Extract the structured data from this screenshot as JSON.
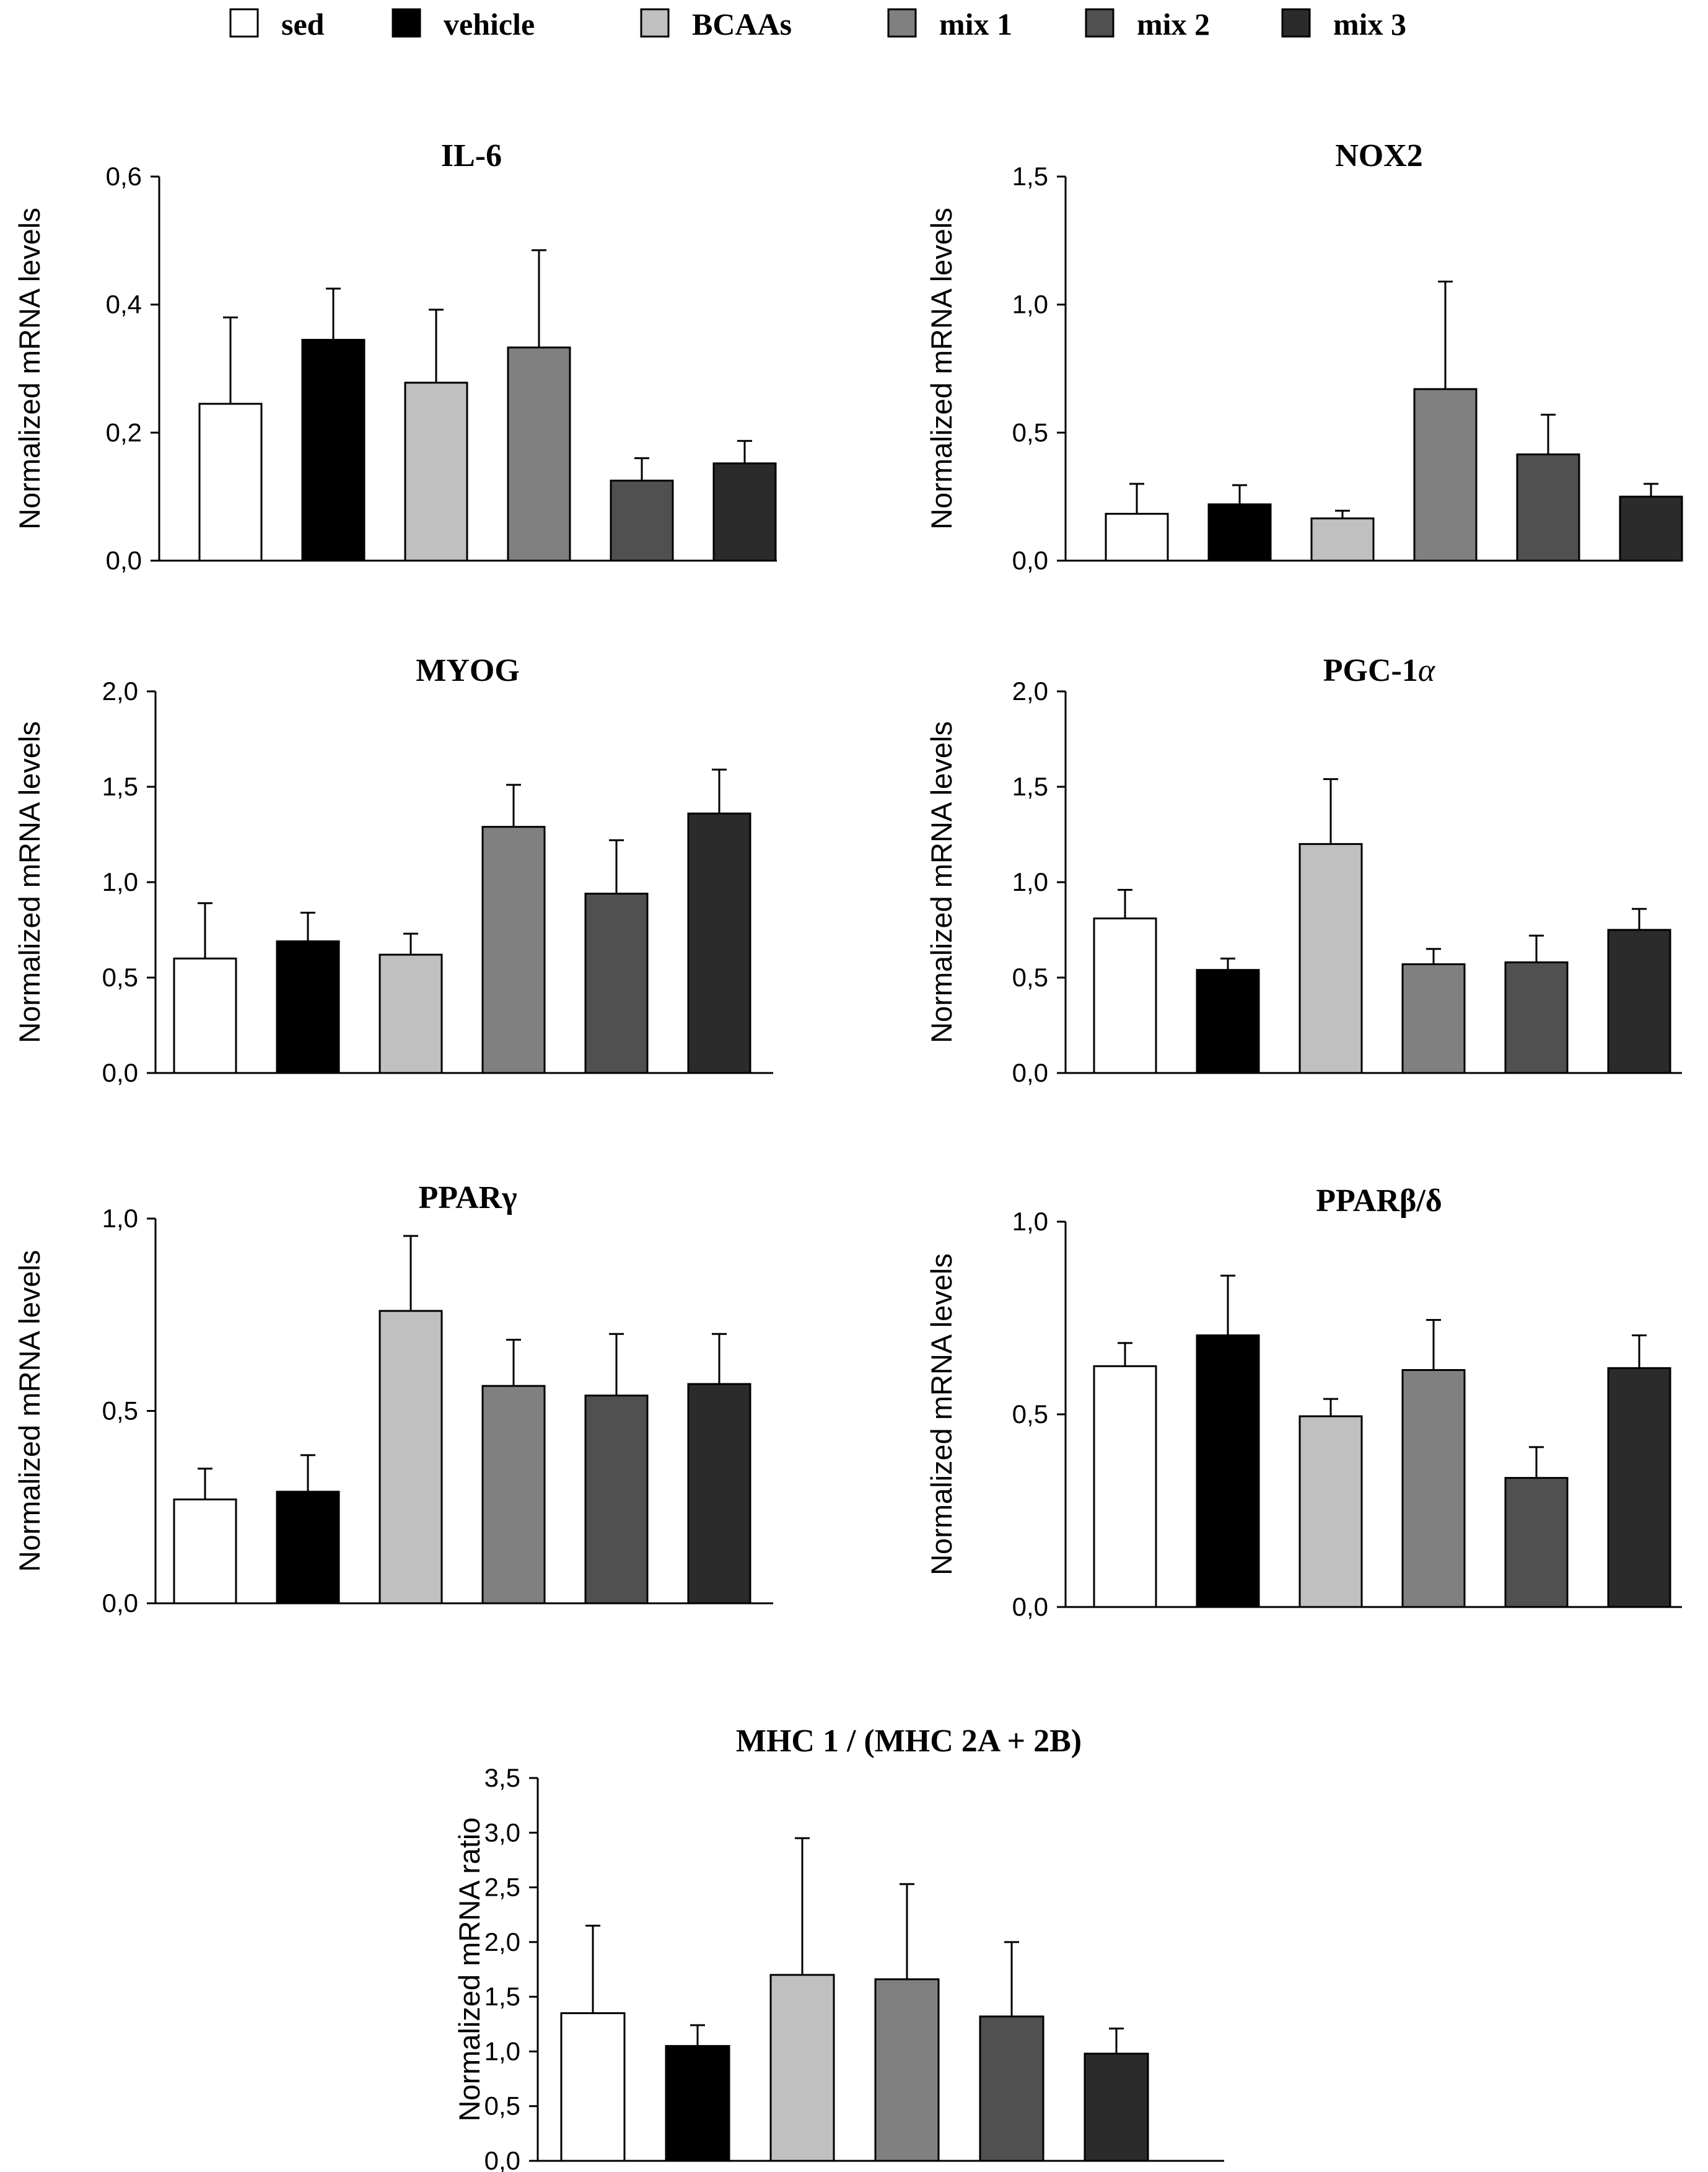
{
  "legend": [
    {
      "label": "sed",
      "color": "#ffffff"
    },
    {
      "label": "vehicle",
      "color": "#000000"
    },
    {
      "label": "BCAAs",
      "color": "#c0c0c0"
    },
    {
      "label": "mix 1",
      "color": "#808080"
    },
    {
      "label": "mix 2",
      "color": "#505050"
    },
    {
      "label": "mix 3",
      "color": "#2b2b2b"
    }
  ],
  "chart_data": [
    {
      "type": "bar",
      "title": "IL-6",
      "ylabel": "Normalized mRNA levels",
      "ylim": [
        0,
        0.6
      ],
      "yticks": [
        "0,0",
        "0,2",
        "0,4",
        "0,6"
      ],
      "categories": [
        "sed",
        "vehicle",
        "BCAAs",
        "mix 1",
        "mix 2",
        "mix 3"
      ],
      "values": [
        0.245,
        0.345,
        0.278,
        0.333,
        0.125,
        0.152
      ],
      "errors": [
        0.135,
        0.08,
        0.114,
        0.152,
        0.035,
        0.035
      ]
    },
    {
      "type": "bar",
      "title": "NOX2",
      "ylabel": "Normalized mRNA levels",
      "ylim": [
        0,
        1.5
      ],
      "yticks": [
        "0,0",
        "0,5",
        "1,0",
        "1,5"
      ],
      "categories": [
        "sed",
        "vehicle",
        "BCAAs",
        "mix 1",
        "mix 2",
        "mix 3"
      ],
      "values": [
        0.183,
        0.22,
        0.165,
        0.67,
        0.415,
        0.25
      ],
      "errors": [
        0.117,
        0.075,
        0.03,
        0.42,
        0.155,
        0.05
      ]
    },
    {
      "type": "bar",
      "title": "MYOG",
      "ylabel": "Normalized mRNA levels",
      "ylim": [
        0,
        2.0
      ],
      "yticks": [
        "0,0",
        "0,5",
        "1,0",
        "1,5",
        "2,0"
      ],
      "categories": [
        "sed",
        "vehicle",
        "BCAAs",
        "mix 1",
        "mix 2",
        "mix 3"
      ],
      "values": [
        0.6,
        0.69,
        0.62,
        1.29,
        0.94,
        1.36
      ],
      "errors": [
        0.29,
        0.15,
        0.11,
        0.22,
        0.28,
        0.23
      ]
    },
    {
      "type": "bar",
      "title": "PGC-1",
      "title_suffix": "α",
      "ylabel": "Normalized mRNA levels",
      "ylim": [
        0,
        2.0
      ],
      "yticks": [
        "0,0",
        "0,5",
        "1,0",
        "1,5",
        "2,0"
      ],
      "categories": [
        "sed",
        "vehicle",
        "BCAAs",
        "mix 1",
        "mix 2",
        "mix 3"
      ],
      "values": [
        0.81,
        0.54,
        1.2,
        0.57,
        0.58,
        0.75
      ],
      "errors": [
        0.15,
        0.06,
        0.34,
        0.08,
        0.14,
        0.11
      ]
    },
    {
      "type": "bar",
      "title": "PPARγ",
      "ylabel": "Normalized mRNA levels",
      "ylim": [
        0,
        1.0
      ],
      "yticks": [
        "0,0",
        "0,5",
        "1,0"
      ],
      "categories": [
        "sed",
        "vehicle",
        "BCAAs",
        "mix 1",
        "mix 2",
        "mix 3"
      ],
      "values": [
        0.27,
        0.29,
        0.76,
        0.565,
        0.54,
        0.57
      ],
      "errors": [
        0.08,
        0.095,
        0.195,
        0.12,
        0.16,
        0.13
      ]
    },
    {
      "type": "bar",
      "title": "PPARβ/δ",
      "ylabel": "Normalized mRNA levels",
      "ylim": [
        0,
        1.0
      ],
      "yticks": [
        "0,0",
        "0,5",
        "1,0"
      ],
      "categories": [
        "sed",
        "vehicle",
        "BCAAs",
        "mix 1",
        "mix 2",
        "mix 3"
      ],
      "values": [
        0.625,
        0.705,
        0.495,
        0.615,
        0.335,
        0.62
      ],
      "errors": [
        0.06,
        0.155,
        0.045,
        0.13,
        0.08,
        0.085
      ]
    },
    {
      "type": "bar",
      "title": "MHC 1 / (MHC 2A + 2B)",
      "ylabel": "Normalized mRNA ratio",
      "ylim": [
        0,
        3.5
      ],
      "yticks": [
        "0,0",
        "0,5",
        "1,0",
        "1,5",
        "2,0",
        "2,5",
        "3,0",
        "3,5"
      ],
      "categories": [
        "sed",
        "vehicle",
        "BCAAs",
        "mix 1",
        "mix 2",
        "mix 3"
      ],
      "values": [
        1.35,
        1.05,
        1.7,
        1.66,
        1.32,
        0.98
      ],
      "errors": [
        0.8,
        0.19,
        1.25,
        0.87,
        0.68,
        0.23
      ]
    }
  ]
}
